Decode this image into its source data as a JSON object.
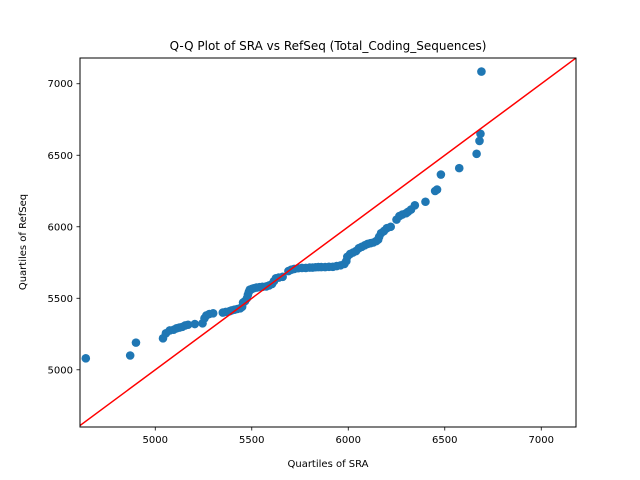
{
  "chart_data": {
    "type": "scatter",
    "title": "Q-Q Plot of SRA vs RefSeq (Total_Coding_Sequences)",
    "xlabel": "Quartiles of SRA",
    "ylabel": "Quartiles of RefSeq",
    "xlim": [
      4610,
      7180
    ],
    "ylim": [
      4600,
      7180
    ],
    "xticks": [
      5000,
      5500,
      6000,
      6500,
      7000
    ],
    "yticks": [
      5000,
      5500,
      6000,
      6500,
      7000
    ],
    "grid": false,
    "legend": "none",
    "marker_color": "#1f77b4",
    "line_color": "#ff0000",
    "reference_line": {
      "slope": 1,
      "intercept": 0
    },
    "points": [
      [
        4640,
        5080
      ],
      [
        4870,
        5100
      ],
      [
        4900,
        5190
      ],
      [
        5040,
        5220
      ],
      [
        5055,
        5255
      ],
      [
        5075,
        5275
      ],
      [
        5095,
        5280
      ],
      [
        5110,
        5290
      ],
      [
        5125,
        5295
      ],
      [
        5140,
        5300
      ],
      [
        5155,
        5310
      ],
      [
        5170,
        5315
      ],
      [
        5205,
        5320
      ],
      [
        5245,
        5325
      ],
      [
        5255,
        5360
      ],
      [
        5265,
        5380
      ],
      [
        5280,
        5390
      ],
      [
        5300,
        5395
      ],
      [
        5350,
        5400
      ],
      [
        5365,
        5405
      ],
      [
        5385,
        5410
      ],
      [
        5395,
        5415
      ],
      [
        5410,
        5420
      ],
      [
        5425,
        5425
      ],
      [
        5440,
        5430
      ],
      [
        5450,
        5440
      ],
      [
        5455,
        5470
      ],
      [
        5465,
        5480
      ],
      [
        5475,
        5500
      ],
      [
        5480,
        5525
      ],
      [
        5485,
        5545
      ],
      [
        5490,
        5560
      ],
      [
        5500,
        5565
      ],
      [
        5510,
        5570
      ],
      [
        5525,
        5575
      ],
      [
        5540,
        5578
      ],
      [
        5555,
        5580
      ],
      [
        5575,
        5583
      ],
      [
        5590,
        5590
      ],
      [
        5605,
        5600
      ],
      [
        5615,
        5620
      ],
      [
        5625,
        5640
      ],
      [
        5640,
        5645
      ],
      [
        5660,
        5650
      ],
      [
        5690,
        5690
      ],
      [
        5705,
        5700
      ],
      [
        5720,
        5705
      ],
      [
        5740,
        5710
      ],
      [
        5760,
        5712
      ],
      [
        5780,
        5712
      ],
      [
        5800,
        5715
      ],
      [
        5815,
        5715
      ],
      [
        5830,
        5717
      ],
      [
        5845,
        5718
      ],
      [
        5860,
        5718
      ],
      [
        5880,
        5718
      ],
      [
        5900,
        5720
      ],
      [
        5920,
        5720
      ],
      [
        5940,
        5725
      ],
      [
        5960,
        5730
      ],
      [
        5980,
        5740
      ],
      [
        5990,
        5760
      ],
      [
        5995,
        5790
      ],
      [
        6010,
        5810
      ],
      [
        6025,
        5820
      ],
      [
        6040,
        5830
      ],
      [
        6055,
        5850
      ],
      [
        6070,
        5860
      ],
      [
        6085,
        5870
      ],
      [
        6100,
        5880
      ],
      [
        6115,
        5885
      ],
      [
        6130,
        5890
      ],
      [
        6145,
        5900
      ],
      [
        6155,
        5910
      ],
      [
        6160,
        5930
      ],
      [
        6170,
        5955
      ],
      [
        6185,
        5970
      ],
      [
        6200,
        5990
      ],
      [
        6220,
        6000
      ],
      [
        6250,
        6050
      ],
      [
        6265,
        6075
      ],
      [
        6280,
        6085
      ],
      [
        6300,
        6095
      ],
      [
        6310,
        6105
      ],
      [
        6325,
        6120
      ],
      [
        6345,
        6150
      ],
      [
        6400,
        6175
      ],
      [
        6450,
        6250
      ],
      [
        6460,
        6260
      ],
      [
        6480,
        6365
      ],
      [
        6575,
        6410
      ],
      [
        6665,
        6510
      ],
      [
        6680,
        6600
      ],
      [
        6685,
        6650
      ],
      [
        6690,
        7085
      ]
    ]
  }
}
